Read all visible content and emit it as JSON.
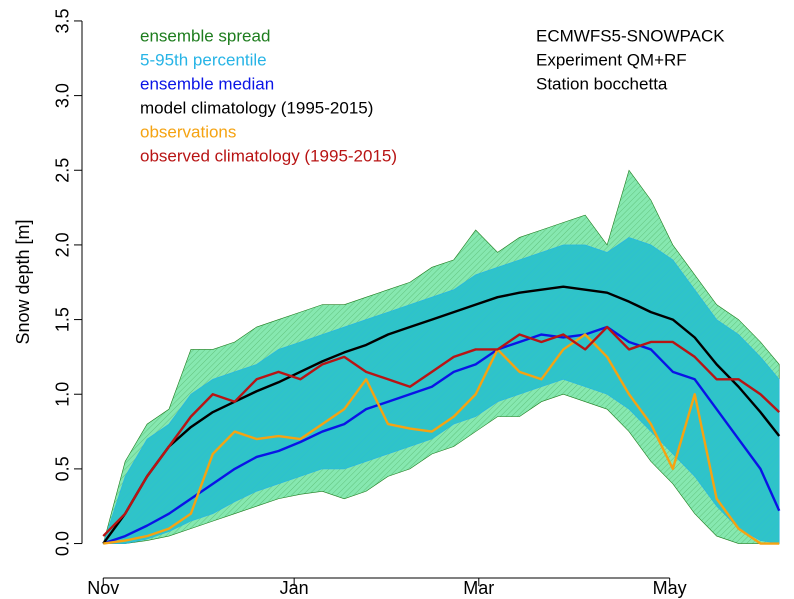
{
  "chart_data": {
    "type": "line",
    "ylabel": "Snow depth [m]",
    "annotations": [
      "ECMWFS5-SNOWPACK",
      "Experiment QM+RF",
      "Station bocchetta"
    ],
    "x": [
      0,
      7,
      14,
      21,
      28,
      35,
      42,
      49,
      56,
      63,
      70,
      77,
      84,
      91,
      98,
      105,
      112,
      119,
      126,
      133,
      140,
      147,
      154,
      161,
      168,
      175,
      182,
      189,
      196,
      203,
      210,
      216
    ],
    "xlim": [
      -2,
      222
    ],
    "xticks": [
      {
        "value": 0,
        "label": "Nov"
      },
      {
        "value": 61,
        "label": "Jan"
      },
      {
        "value": 120,
        "label": "Mar"
      },
      {
        "value": 181,
        "label": "May"
      }
    ],
    "ylim": [
      -0.07,
      3.58
    ],
    "yticks": [
      {
        "value": 0,
        "label": "0.0"
      },
      0.5,
      {
        "value": 1,
        "label": "1.0"
      },
      1.5,
      {
        "value": 2,
        "label": "2.0"
      },
      2.5,
      {
        "value": 3,
        "label": "3.0"
      },
      3.5
    ],
    "series": [
      {
        "name": "ensemble spread",
        "kind": "band",
        "color": "#1e7d1e",
        "fill": "#86e8b0",
        "values": [
          0,
          0.55,
          0.8,
          0.9,
          1.3,
          1.3,
          1.35,
          1.45,
          1.5,
          1.55,
          1.6,
          1.6,
          1.65,
          1.7,
          1.75,
          1.85,
          1.9,
          2.1,
          1.95,
          2.05,
          2.1,
          2.15,
          2.2,
          2.0,
          2.5,
          2.3,
          2.0,
          1.8,
          1.6,
          1.5,
          1.35,
          1.2
        ],
        "lower": [
          0,
          0,
          0.02,
          0.05,
          0.1,
          0.15,
          0.2,
          0.25,
          0.3,
          0.33,
          0.35,
          0.3,
          0.35,
          0.45,
          0.5,
          0.6,
          0.65,
          0.75,
          0.85,
          0.85,
          0.95,
          1.0,
          0.95,
          0.9,
          0.75,
          0.55,
          0.4,
          0.2,
          0.05,
          0,
          0,
          0
        ]
      },
      {
        "name": "5-95th percentile",
        "kind": "band",
        "color": "#27b4e6",
        "fill": "#2fc4c8",
        "values": [
          0,
          0.45,
          0.7,
          0.8,
          1.0,
          1.1,
          1.15,
          1.2,
          1.3,
          1.35,
          1.4,
          1.45,
          1.5,
          1.55,
          1.6,
          1.65,
          1.7,
          1.8,
          1.85,
          1.9,
          1.95,
          2.0,
          2.0,
          1.95,
          2.05,
          2.0,
          1.9,
          1.7,
          1.5,
          1.4,
          1.25,
          1.1
        ],
        "lower": [
          0,
          0,
          0.03,
          0.08,
          0.15,
          0.2,
          0.28,
          0.35,
          0.4,
          0.45,
          0.5,
          0.5,
          0.55,
          0.6,
          0.65,
          0.7,
          0.8,
          0.85,
          0.95,
          1.0,
          1.05,
          1.1,
          1.05,
          1.0,
          0.9,
          0.75,
          0.6,
          0.45,
          0.25,
          0.1,
          0.02,
          0
        ]
      },
      {
        "name": "ensemble median",
        "color": "#0a14e6",
        "values": [
          0,
          0.05,
          0.12,
          0.2,
          0.3,
          0.4,
          0.5,
          0.58,
          0.62,
          0.68,
          0.75,
          0.8,
          0.9,
          0.95,
          1.0,
          1.05,
          1.15,
          1.2,
          1.3,
          1.35,
          1.4,
          1.38,
          1.4,
          1.45,
          1.35,
          1.3,
          1.15,
          1.1,
          0.9,
          0.7,
          0.5,
          0.22
        ]
      },
      {
        "name": "model climatology (1995-2015)",
        "color": "#000000",
        "values": [
          0,
          0.2,
          0.45,
          0.65,
          0.78,
          0.88,
          0.95,
          1.02,
          1.08,
          1.15,
          1.22,
          1.28,
          1.33,
          1.4,
          1.45,
          1.5,
          1.55,
          1.6,
          1.65,
          1.68,
          1.7,
          1.72,
          1.7,
          1.68,
          1.62,
          1.55,
          1.5,
          1.38,
          1.2,
          1.05,
          0.88,
          0.72
        ]
      },
      {
        "name": "observations",
        "color": "#f5a312",
        "values": [
          0,
          0.02,
          0.05,
          0.1,
          0.2,
          0.6,
          0.75,
          0.7,
          0.72,
          0.7,
          0.8,
          0.9,
          1.1,
          0.8,
          0.77,
          0.75,
          0.85,
          1.0,
          1.3,
          1.15,
          1.1,
          1.3,
          1.4,
          1.25,
          1.0,
          0.8,
          0.5,
          1.0,
          0.3,
          0.1,
          0,
          0
        ]
      },
      {
        "name": "observed climatology (1995-2015)",
        "color": "#b81414",
        "values": [
          0.05,
          0.2,
          0.45,
          0.65,
          0.85,
          1.0,
          0.95,
          1.1,
          1.15,
          1.1,
          1.2,
          1.25,
          1.15,
          1.1,
          1.05,
          1.15,
          1.25,
          1.3,
          1.3,
          1.4,
          1.35,
          1.4,
          1.3,
          1.45,
          1.3,
          1.35,
          1.35,
          1.25,
          1.1,
          1.1,
          1.0,
          0.88
        ]
      }
    ]
  }
}
